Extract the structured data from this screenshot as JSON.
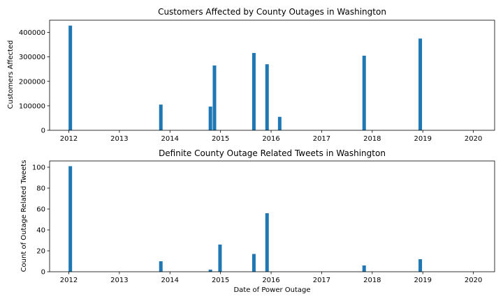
{
  "chart_data": [
    {
      "type": "bar",
      "title": "Customers Affected by County Outages in Washington",
      "xlabel": "",
      "ylabel": "Customers Affected",
      "x_ticks": [
        "2012",
        "2013",
        "2014",
        "2015",
        "2016",
        "2017",
        "2018",
        "2019",
        "2020"
      ],
      "xlim": [
        2011.62,
        2020.42
      ],
      "y_ticks": [
        "0",
        "100000",
        "200000",
        "300000",
        "400000"
      ],
      "ylim": [
        0,
        450000
      ],
      "bar_color": "#1f77b4",
      "x": [
        2012.03,
        2013.82,
        2014.8,
        2014.88,
        2015.66,
        2015.92,
        2016.17,
        2017.84,
        2018.95
      ],
      "values": [
        428000,
        105000,
        97000,
        265000,
        316000,
        270000,
        55000,
        305000,
        375000
      ]
    },
    {
      "type": "bar",
      "title": "Definite County Outage Related Tweets in Washington",
      "xlabel": "Date of Power Outage",
      "ylabel": "Count of Outage Related Tweets",
      "x_ticks": [
        "2012",
        "2013",
        "2014",
        "2015",
        "2016",
        "2017",
        "2018",
        "2019",
        "2020"
      ],
      "xlim": [
        2011.62,
        2020.42
      ],
      "y_ticks": [
        "0",
        "20",
        "40",
        "60",
        "80",
        "100"
      ],
      "ylim": [
        0,
        106
      ],
      "bar_color": "#1f77b4",
      "x": [
        2012.03,
        2013.82,
        2014.8,
        2014.99,
        2015.66,
        2015.92,
        2017.84,
        2018.95
      ],
      "values": [
        101,
        10,
        2,
        26,
        17,
        56,
        6,
        12
      ]
    }
  ]
}
